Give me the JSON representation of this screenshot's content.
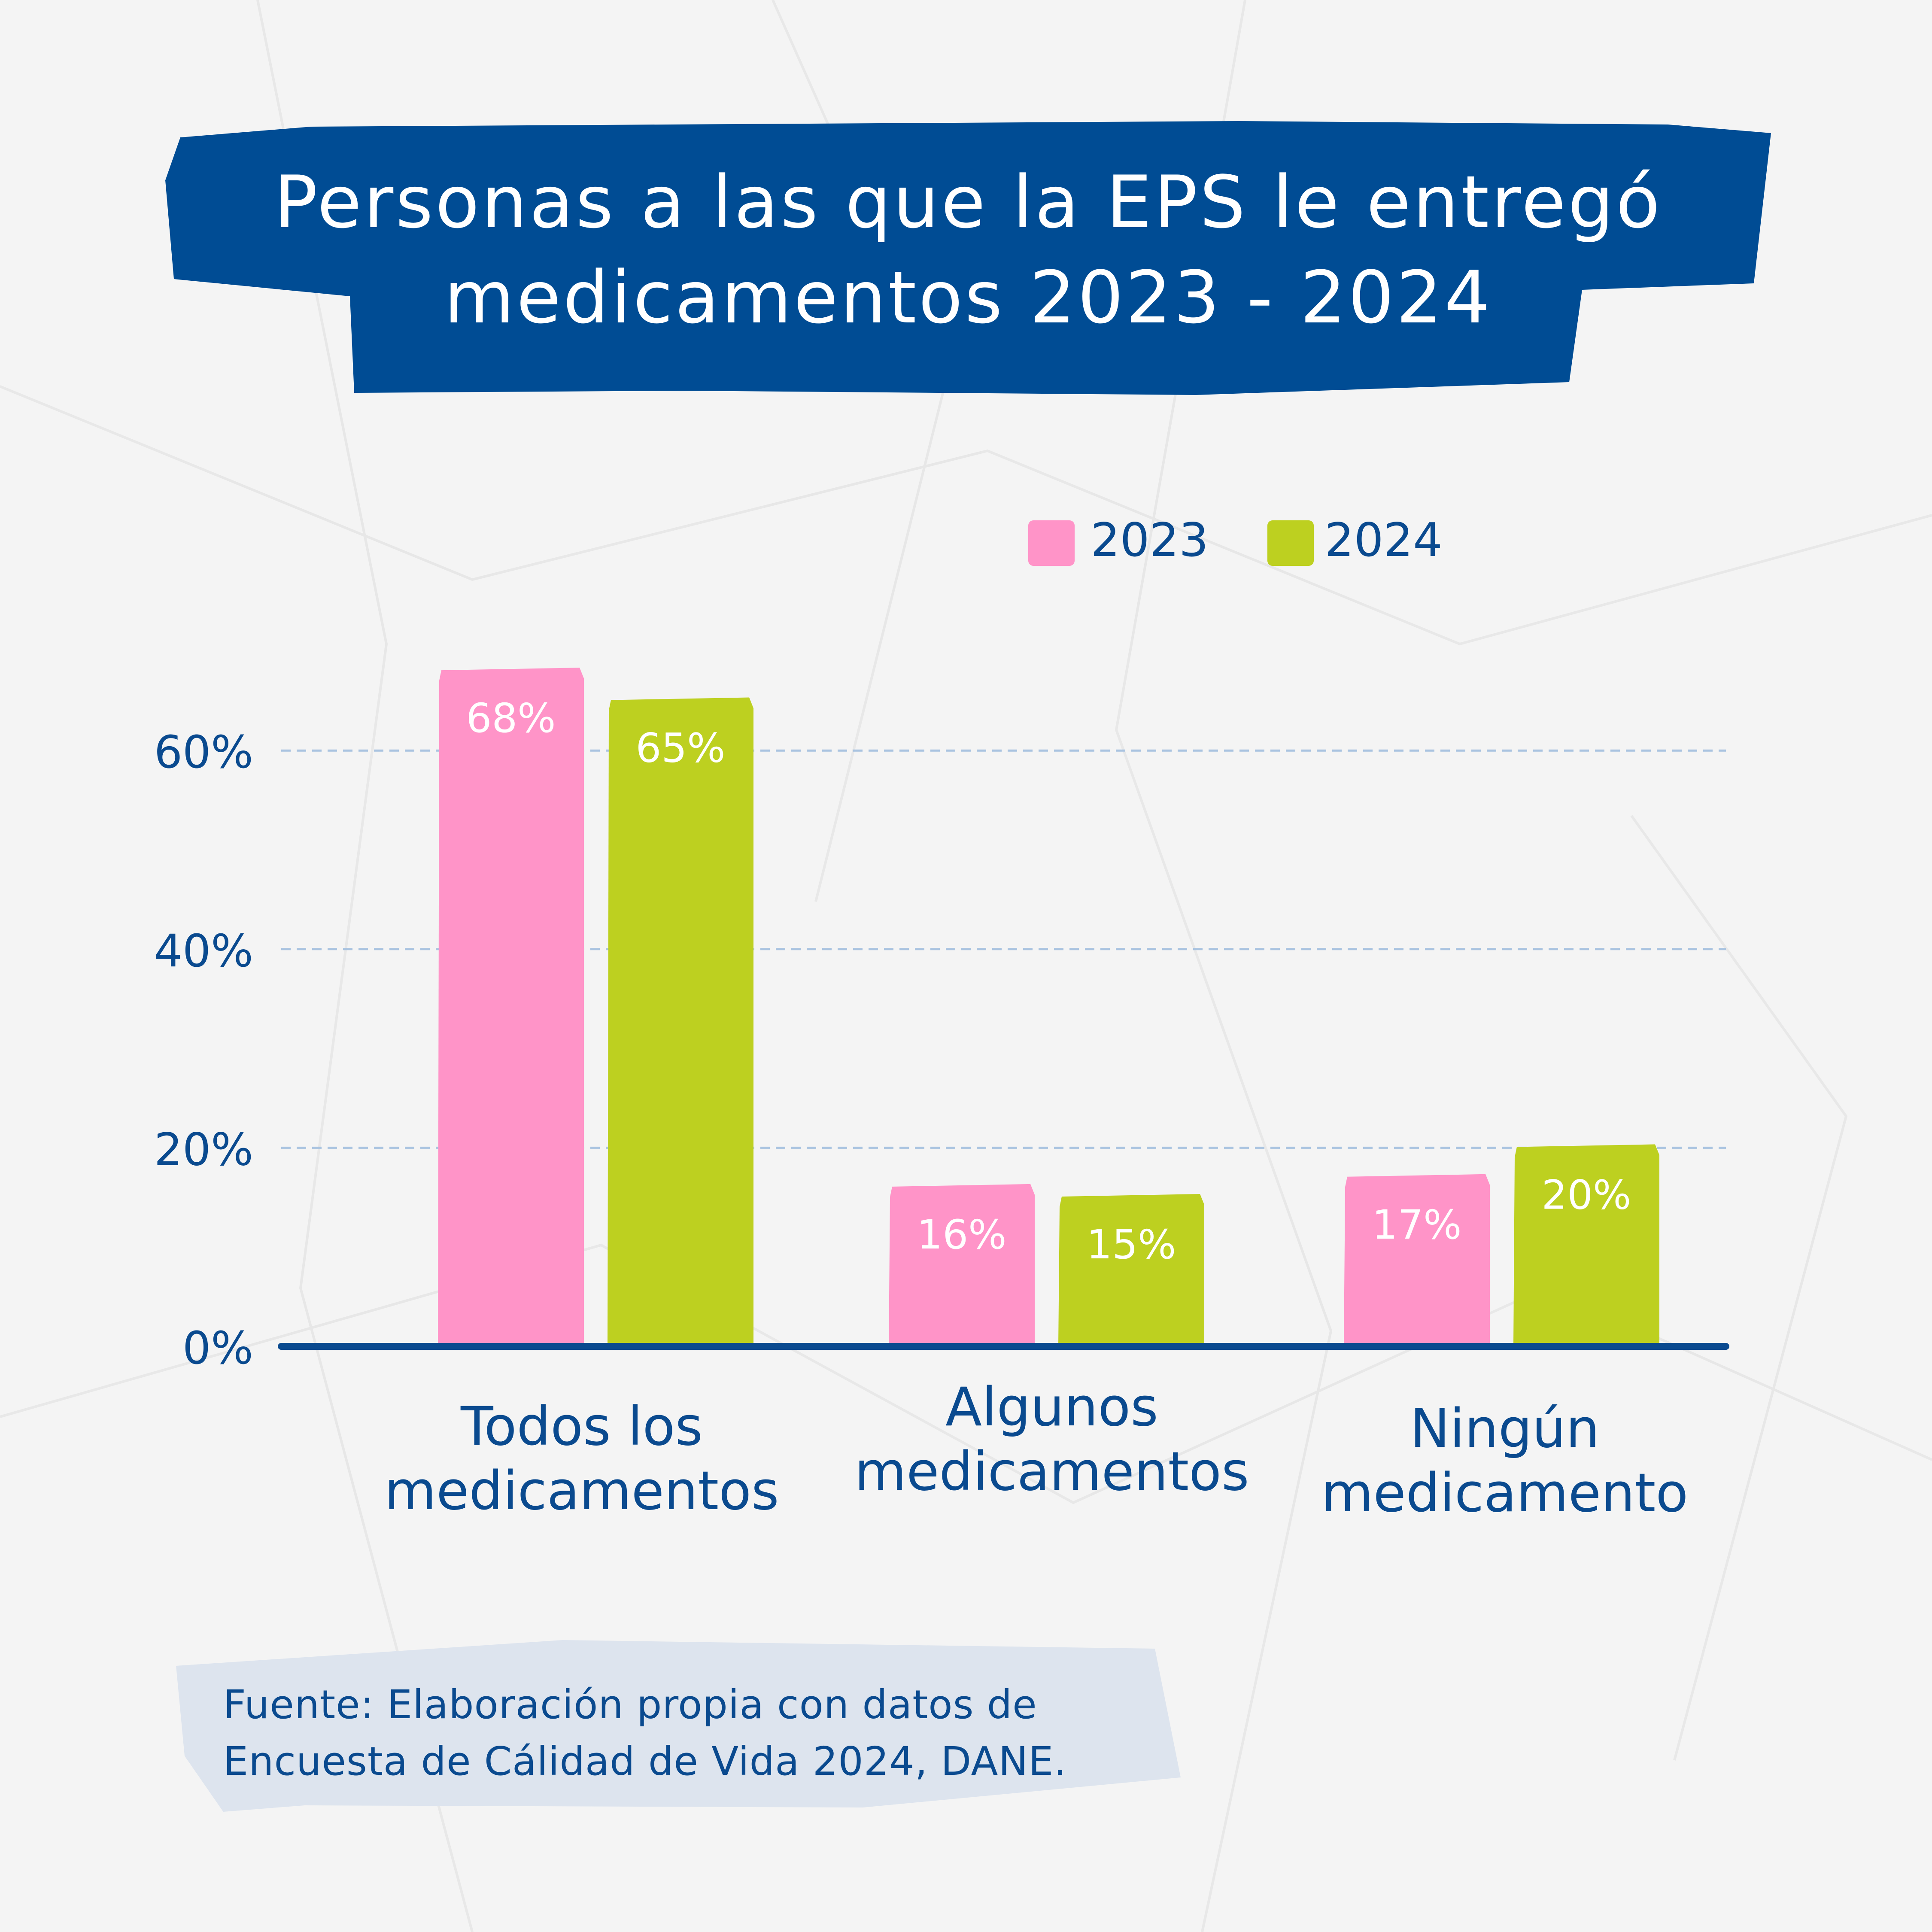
{
  "colors": {
    "background": "#f4f4f4",
    "banner": "#004c94",
    "text_dark": "#0a4a8f",
    "series_2023": "#ff94c8",
    "series_2024": "#bdd020",
    "grid": "#a9c3e0",
    "source_box": "#dde4ee"
  },
  "title_lines": [
    "Personas a las que la EPS le entregó",
    "medicamentos 2023 - 2024"
  ],
  "source_lines": [
    "Fuente: Elaboración propia con datos de",
    "Encuesta de Cálidad de Vida 2024, DANE."
  ],
  "chart_data": {
    "type": "bar",
    "title": "Personas a las que la EPS le entregó medicamentos 2023 - 2024",
    "categories": [
      [
        "Todos los",
        "medicamentos"
      ],
      [
        "Algunos",
        "medicamentos"
      ],
      [
        "Ningún",
        "medicamento"
      ]
    ],
    "series": [
      {
        "name": "2023",
        "color": "#ff94c8",
        "values": [
          68,
          16,
          17
        ],
        "labels": [
          "68%",
          "16%",
          "17%"
        ]
      },
      {
        "name": "2024",
        "color": "#bdd020",
        "values": [
          65,
          15,
          20
        ],
        "labels": [
          "65%",
          "15%",
          "20%"
        ]
      }
    ],
    "ylim": [
      0,
      68
    ],
    "yticks": [
      0,
      20,
      40,
      60
    ],
    "ytick_labels": [
      "0%",
      "20%",
      "40%",
      "60%"
    ],
    "grid": "horizontal dashed",
    "legend": "top-right"
  }
}
